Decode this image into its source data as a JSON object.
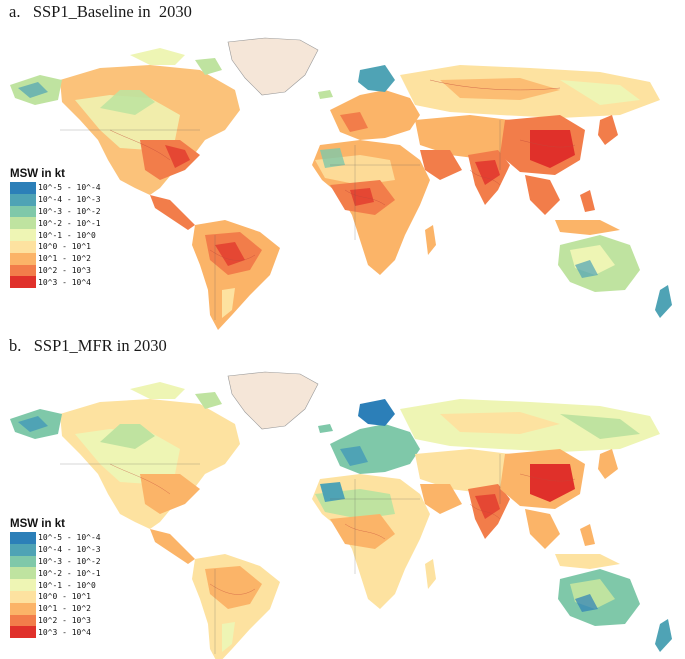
{
  "panels": [
    {
      "label": "a.   SSP1_Baseline in  2030",
      "legend": {
        "title": "MSW in kt",
        "items": [
          {
            "label": "10^-5 - 10^-4",
            "color": "#2c7fb8"
          },
          {
            "label": "10^-4 - 10^-3",
            "color": "#4fa3b5"
          },
          {
            "label": "10^-3 - 10^-2",
            "color": "#7fc8a9"
          },
          {
            "label": "10^-2 - 10^-1",
            "color": "#bfe3a0"
          },
          {
            "label": "10^-1 - 10^0",
            "color": "#eef5b4"
          },
          {
            "label": "10^0 - 10^1",
            "color": "#fde2a0"
          },
          {
            "label": "10^1 - 10^2",
            "color": "#fbb468"
          },
          {
            "label": "10^2 - 10^3",
            "color": "#f27d4a"
          },
          {
            "label": "10^3 - 10^4",
            "color": "#e0302a"
          }
        ]
      }
    },
    {
      "label": "b.   SSP1_MFR in 2030",
      "legend": {
        "title": "MSW in kt",
        "items": [
          {
            "label": "10^-5 - 10^-4",
            "color": "#2c7fb8"
          },
          {
            "label": "10^-4 - 10^-3",
            "color": "#4fa3b5"
          },
          {
            "label": "10^-3 - 10^-2",
            "color": "#7fc8a9"
          },
          {
            "label": "10^-2 - 10^-1",
            "color": "#bfe3a0"
          },
          {
            "label": "10^-1 - 10^0",
            "color": "#eef5b4"
          },
          {
            "label": "10^0 - 10^1",
            "color": "#fde2a0"
          },
          {
            "label": "10^1 - 10^2",
            "color": "#fbb468"
          },
          {
            "label": "10^2 - 10^3",
            "color": "#f27d4a"
          },
          {
            "label": "10^3 - 10^4",
            "color": "#e0302a"
          }
        ]
      }
    }
  ],
  "colors": {
    "greenland": "#f5e6d8",
    "border": "#555555",
    "river": "#c2483a"
  }
}
